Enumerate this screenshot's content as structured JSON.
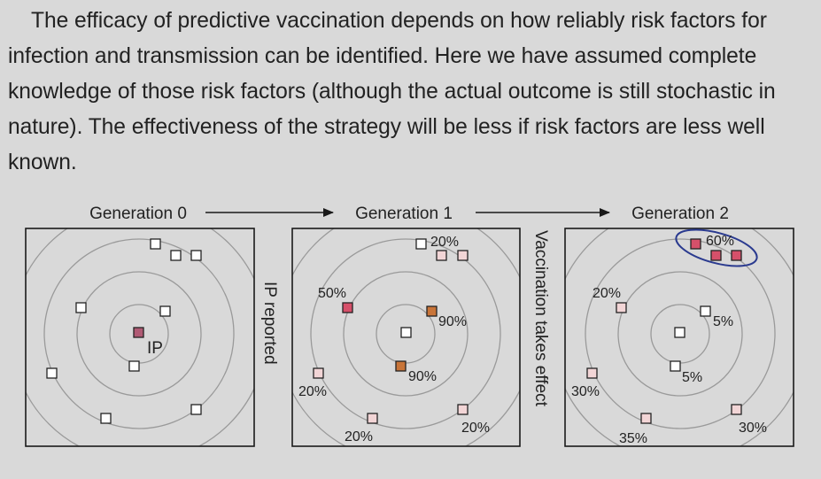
{
  "paragraph": "The efficacy of predictive vaccination depends on how reliably risk factors for infection and transmission can be identified. Here we have assumed complete knowledge of those risk factors (although the actual outcome is still stochastic in nature). The effectiveness of the strategy will be less if risk factors are less well known.",
  "figure": {
    "generation_labels": [
      "Generation 0",
      "Generation 1",
      "Generation 2"
    ],
    "between_labels": [
      "IP reported",
      "Vaccination takes effect"
    ],
    "ip_label": "IP",
    "panel1_percents": [
      "20%",
      "50%",
      "90%",
      "90%",
      "20%",
      "20%",
      "20%"
    ],
    "panel2_percents": [
      "60%",
      "20%",
      "5%",
      "5%",
      "30%",
      "35%",
      "30%"
    ],
    "colors": {
      "background": "#d9d9d9",
      "ring": "#9a9a9a",
      "node_white": "#ffffff",
      "ip_node": "#b05a74",
      "high_risk_red": "#d6506a",
      "orange_node": "#c87438",
      "pale_pink": "#f2d5d6",
      "ellipse": "#2a3a8f"
    }
  }
}
